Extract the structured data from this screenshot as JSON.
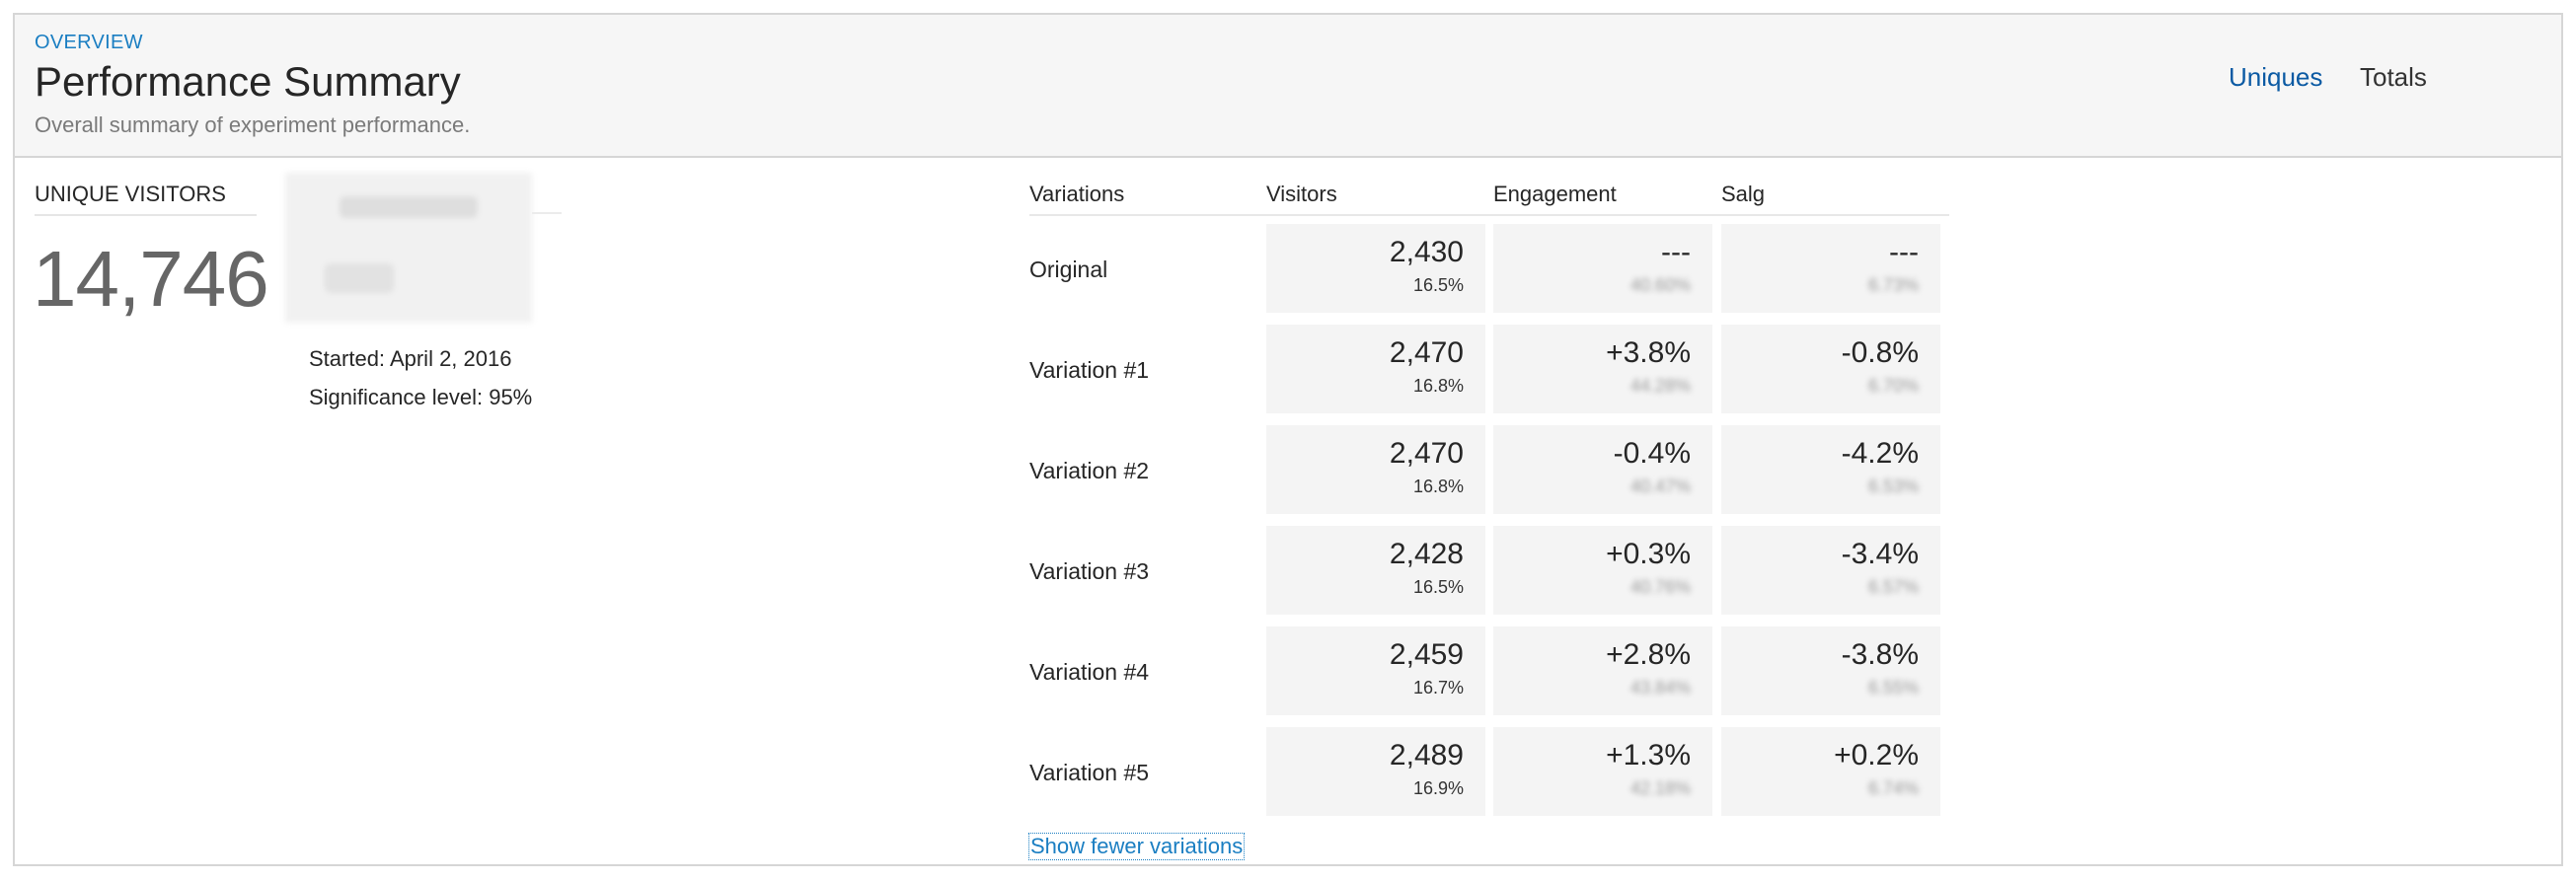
{
  "header": {
    "eyebrow": "OVERVIEW",
    "title": "Performance Summary",
    "subtitle": "Overall summary of experiment performance.",
    "toggles": [
      {
        "label": "Uniques",
        "active": true
      },
      {
        "label": "Totals",
        "active": false
      }
    ]
  },
  "stats": {
    "unique_visitors_label": "UNIQUE VISITORS",
    "unique_visitors_value": "14,746",
    "started": "Started: April 2, 2016",
    "significance": "Significance level: 95%"
  },
  "table": {
    "columns": [
      "Variations",
      "Visitors",
      "Engagement",
      "Salg"
    ],
    "rows": [
      {
        "name": "Original",
        "visitors": "2,430",
        "visitors_pct": "16.5%",
        "engagement": "---",
        "engagement_sub": "40.60%",
        "salg": "---",
        "salg_sub": "6.73%"
      },
      {
        "name": "Variation #1",
        "visitors": "2,470",
        "visitors_pct": "16.8%",
        "engagement": "+3.8%",
        "engagement_sub": "44.28%",
        "salg": "-0.8%",
        "salg_sub": "6.70%"
      },
      {
        "name": "Variation #2",
        "visitors": "2,470",
        "visitors_pct": "16.8%",
        "engagement": "-0.4%",
        "engagement_sub": "40.47%",
        "salg": "-4.2%",
        "salg_sub": "6.53%"
      },
      {
        "name": "Variation #3",
        "visitors": "2,428",
        "visitors_pct": "16.5%",
        "engagement": "+0.3%",
        "engagement_sub": "40.76%",
        "salg": "-3.4%",
        "salg_sub": "6.57%"
      },
      {
        "name": "Variation #4",
        "visitors": "2,459",
        "visitors_pct": "16.7%",
        "engagement": "+2.8%",
        "engagement_sub": "43.84%",
        "salg": "-3.8%",
        "salg_sub": "6.55%"
      },
      {
        "name": "Variation #5",
        "visitors": "2,489",
        "visitors_pct": "16.9%",
        "engagement": "+1.3%",
        "engagement_sub": "42.18%",
        "salg": "+0.2%",
        "salg_sub": "6.74%"
      }
    ],
    "show_fewer_label": "Show fewer variations"
  },
  "colors": {
    "accent": "#1a7ec2",
    "active_toggle": "#0b5aa3",
    "header_bg": "#f6f6f6",
    "cell_bg": "#f4f4f4",
    "border": "#d6d6d6"
  }
}
